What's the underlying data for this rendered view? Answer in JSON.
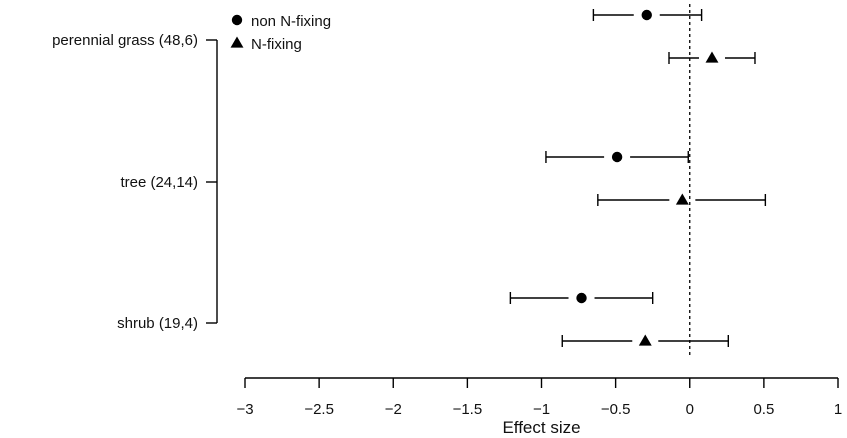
{
  "chart_data": {
    "type": "scatter",
    "title": "",
    "xlabel": "Effect size",
    "ylabel": "",
    "xlim": [
      -3,
      1
    ],
    "x_ticks": [
      {
        "value": -3,
        "label": "−3"
      },
      {
        "value": -2.5,
        "label": "−2.5"
      },
      {
        "value": -2,
        "label": "−2"
      },
      {
        "value": -1.5,
        "label": "−1.5"
      },
      {
        "value": -1,
        "label": "−1"
      },
      {
        "value": -0.5,
        "label": "−0.5"
      },
      {
        "value": 0,
        "label": "0"
      },
      {
        "value": 0.5,
        "label": "0.5"
      },
      {
        "value": 1,
        "label": "1"
      }
    ],
    "reference_line": 0,
    "grid": false,
    "legend_position": "top-left",
    "categories": [
      "perennial grass (48,6)",
      "tree (24,14)",
      "shrub (19,4)"
    ],
    "series": [
      {
        "name": "non N-fixing",
        "marker": "circle",
        "estimate": [
          -0.29,
          -0.49,
          -0.73
        ],
        "lower": [
          -0.65,
          -0.97,
          -1.21
        ],
        "upper": [
          0.08,
          -0.01,
          -0.25
        ]
      },
      {
        "name": "N-fixing",
        "marker": "triangle",
        "estimate": [
          0.15,
          -0.05,
          -0.3
        ],
        "lower": [
          -0.14,
          -0.62,
          -0.86
        ],
        "upper": [
          0.44,
          0.51,
          0.26
        ]
      }
    ]
  }
}
